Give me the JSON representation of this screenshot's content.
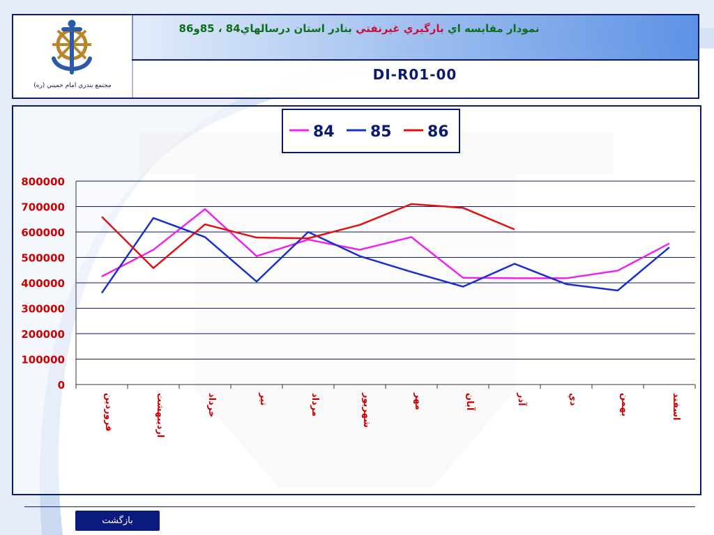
{
  "header": {
    "title_part1": "نمودار مقايسه اي",
    "title_part2": "بارگيري غيرنفتي",
    "title_part3": "بنادر استان درسالهاي84 ، 85و86",
    "doc_code": "DI-R01-00",
    "logo_caption": "مجتمع بندري امام خميني (ره)"
  },
  "nav": {
    "back_label": "بازگشت"
  },
  "colors": {
    "series_84": "#ee22ee",
    "series_85": "#1a2ed0",
    "series_86": "#dd1111",
    "axis_text": "#cc0000",
    "frame": "#0a1a6e"
  },
  "chart_data": {
    "type": "line",
    "categories": [
      "فروردين",
      "ارديبهشت",
      "خرداد",
      "تير",
      "مرداد",
      "شهريور",
      "مهر",
      "آبان",
      "آذر",
      "دي",
      "بهمن",
      "اسفند"
    ],
    "y_tick_labels": [
      "0",
      "100000",
      "200000",
      "300000",
      "400000",
      "500000",
      "600000",
      "700000",
      "800000"
    ],
    "ylim": [
      0,
      800000
    ],
    "grid": true,
    "legend_position": "top-center",
    "series": [
      {
        "name": "84",
        "color": "#ee22ee",
        "values": [
          425000,
          530000,
          690000,
          505000,
          570000,
          530000,
          580000,
          420000,
          418000,
          418000,
          448000,
          555000
        ]
      },
      {
        "name": "85",
        "color": "#1a2ed0",
        "values": [
          360000,
          655000,
          580000,
          405000,
          600000,
          505000,
          443000,
          385000,
          475000,
          395000,
          370000,
          540000
        ]
      },
      {
        "name": "86",
        "color": "#dd1111",
        "values": [
          660000,
          458000,
          630000,
          578000,
          575000,
          628000,
          710000,
          695000,
          610000,
          null,
          null,
          null
        ]
      }
    ]
  }
}
